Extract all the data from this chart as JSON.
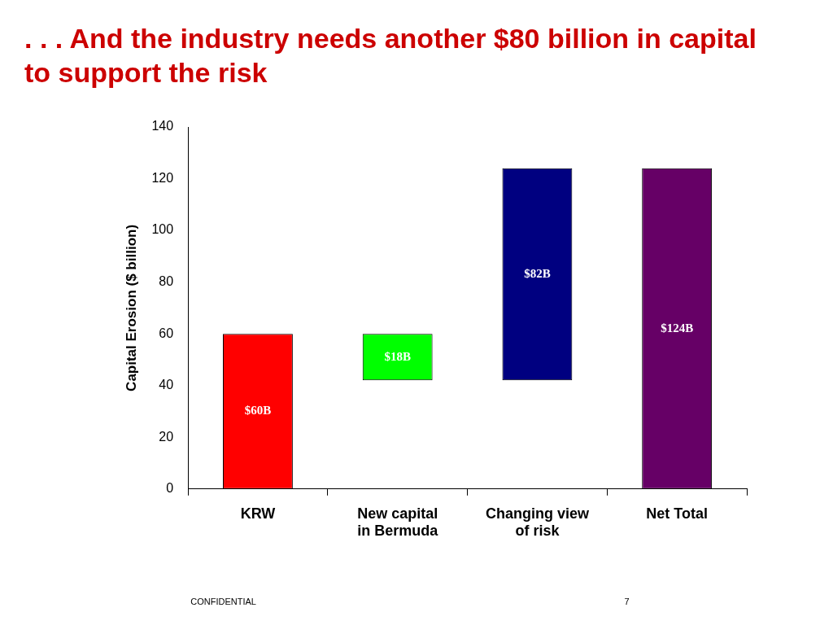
{
  "chart_data": {
    "type": "bar",
    "title": ". . . And the industry needs another $80 billion in capital to support the risk",
    "ylabel": "Capital Erosion ($ billion)",
    "categories": [
      "KRW",
      "New capital in Bermuda",
      "Changing view of risk",
      "Net Total"
    ],
    "values": [
      60,
      18,
      82,
      124
    ],
    "base": [
      0,
      42,
      42,
      0
    ],
    "colors": [
      "#ff0000",
      "#00ff00",
      "#000080",
      "#660066"
    ],
    "value_labels": [
      "$60B",
      "$18B",
      "$82B",
      "$124B"
    ],
    "ylim": [
      0,
      140
    ],
    "yticks": [
      0,
      20,
      40,
      60,
      80,
      100,
      120,
      140
    ],
    "grid": false,
    "legend": false,
    "annotations": [
      "CONFIDENTIAL",
      "7"
    ]
  }
}
